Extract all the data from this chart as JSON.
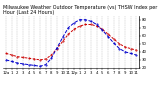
{
  "title": "Milwaukee Weather Outdoor Temperature (vs) THSW Index per Hour (Last 24 Hours)",
  "title_fontsize": 3.5,
  "background_color": "#ffffff",
  "grid_color": "#888888",
  "hours": [
    0,
    1,
    2,
    3,
    4,
    5,
    6,
    7,
    8,
    9,
    10,
    11,
    12,
    13,
    14,
    15,
    16,
    17,
    18,
    19,
    20,
    21,
    22,
    23
  ],
  "temp_values": [
    38,
    36,
    34,
    33,
    32,
    31,
    30,
    31,
    36,
    44,
    53,
    62,
    68,
    72,
    74,
    74,
    72,
    68,
    62,
    56,
    50,
    46,
    44,
    42
  ],
  "thsw_values": [
    30,
    28,
    26,
    25,
    24,
    23,
    22,
    24,
    32,
    45,
    58,
    70,
    76,
    80,
    80,
    78,
    74,
    67,
    59,
    51,
    44,
    40,
    38,
    36
  ],
  "temp_color": "#cc0000",
  "thsw_color": "#0000cc",
  "ylim_min": 20,
  "ylim_max": 85,
  "ytick_values": [
    20,
    30,
    40,
    50,
    60,
    70,
    80
  ],
  "ytick_labels": [
    "20",
    "30",
    "40",
    "50",
    "60",
    "70",
    "80"
  ],
  "tick_fontsize": 2.8,
  "line_width": 0.7,
  "marker_size": 0.9,
  "x_tick_labels": [
    "12a",
    "1",
    "2",
    "3",
    "4",
    "5",
    "6",
    "7",
    "8",
    "9",
    "10",
    "11",
    "12p",
    "1",
    "2",
    "3",
    "4",
    "5",
    "6",
    "7",
    "8",
    "9",
    "10",
    "11"
  ]
}
